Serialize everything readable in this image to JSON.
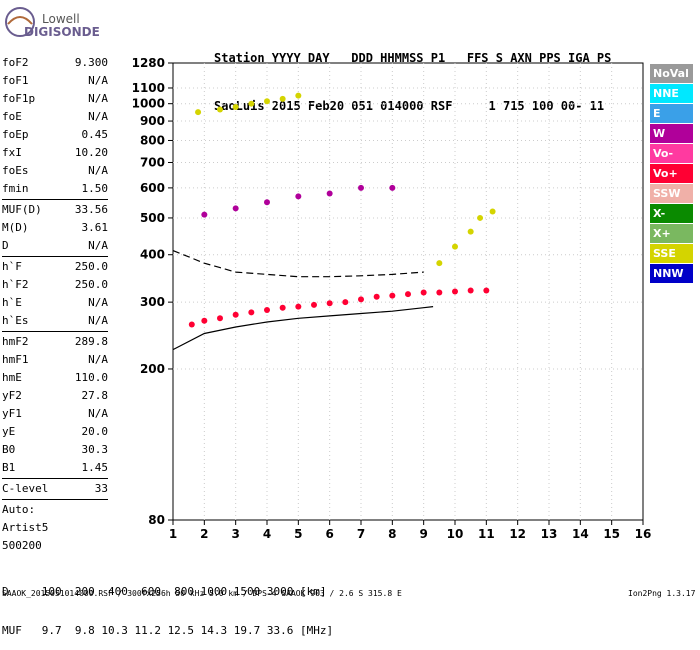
{
  "logo": {
    "line1": "Lowell",
    "line2": "DIGISONDE"
  },
  "header": {
    "labels": "Station YYYY DAY   DDD HHMMSS P1   FFS S AXN PPS IGA PS",
    "values": "SaoLuis 2015 Feb20 051 014000 RSF     1 715 100 00- 11"
  },
  "params": [
    {
      "name": "foF2",
      "value": "9.300"
    },
    {
      "name": "foF1",
      "value": "N/A"
    },
    {
      "name": "foF1p",
      "value": "N/A"
    },
    {
      "name": "foE",
      "value": "N/A"
    },
    {
      "name": "foEp",
      "value": "0.45"
    },
    {
      "name": "fxI",
      "value": "10.20"
    },
    {
      "name": "foEs",
      "value": "N/A"
    },
    {
      "name": "fmin",
      "value": "1.50",
      "sep_after": true
    },
    {
      "name": "MUF(D)",
      "value": "33.56"
    },
    {
      "name": "M(D)",
      "value": "3.61"
    },
    {
      "name": "D",
      "value": "N/A",
      "sep_after": true
    },
    {
      "name": "h`F",
      "value": "250.0"
    },
    {
      "name": "h`F2",
      "value": "250.0"
    },
    {
      "name": "h`E",
      "value": "N/A"
    },
    {
      "name": "h`Es",
      "value": "N/A",
      "sep_after": true
    },
    {
      "name": "hmF2",
      "value": "289.8"
    },
    {
      "name": "hmF1",
      "value": "N/A"
    },
    {
      "name": "hmE",
      "value": "110.0"
    },
    {
      "name": "yF2",
      "value": "27.8"
    },
    {
      "name": "yF1",
      "value": "N/A"
    },
    {
      "name": "yE",
      "value": "20.0"
    },
    {
      "name": "B0",
      "value": "30.3"
    },
    {
      "name": "B1",
      "value": "1.45",
      "sep_after": true
    },
    {
      "name": "C-level",
      "value": "33",
      "sep_after": true
    },
    {
      "name": "Auto:",
      "value": ""
    },
    {
      "name": "Artist5",
      "value": ""
    },
    {
      "name": "500200",
      "value": ""
    }
  ],
  "legend": [
    {
      "label": "NoVal",
      "color": "#9a9a9a"
    },
    {
      "label": "NNE",
      "color": "#00e8ff"
    },
    {
      "label": "E",
      "color": "#3aa0e8"
    },
    {
      "label": "W",
      "color": "#b0009a"
    },
    {
      "label": "Vo-",
      "color": "#ff3aa0"
    },
    {
      "label": "Vo+",
      "color": "#ff0033"
    },
    {
      "label": "SSW",
      "color": "#f0b0a8"
    },
    {
      "label": "X-",
      "color": "#0a8a00"
    },
    {
      "label": "X+",
      "color": "#7ab860"
    },
    {
      "label": "SSE",
      "color": "#d4d400"
    },
    {
      "label": "NNW",
      "color": "#0000c8"
    }
  ],
  "bottom": {
    "row_d": "D     100  200  400  600  800 1000 1500 3000 [km]",
    "row_muf": "MUF   9.7  9.8 10.3 11.2 12.5 14.3 19.7 33.6 [MHz]"
  },
  "footer": {
    "left": "SAAOK_2015051014000.RSF / 300fx256h 50 kHz 5.0 km / DPS-4 SAAOK 903 / 2.6 S 315.8 E",
    "right": "Ion2Png 1.3.17"
  },
  "chart_data": {
    "type": "scatter",
    "title": "",
    "xlabel": "",
    "ylabel": "",
    "xlim": [
      1,
      16
    ],
    "ylim": [
      80,
      1280
    ],
    "x_ticks": [
      1,
      2,
      3,
      4,
      5,
      6,
      7,
      8,
      9,
      10,
      11,
      12,
      13,
      14,
      15,
      16
    ],
    "y_ticks": [
      80,
      200,
      300,
      400,
      500,
      600,
      700,
      800,
      900,
      1000,
      1100,
      1280
    ],
    "y_scale": "log",
    "grid": true,
    "series": [
      {
        "name": "Vo+",
        "color": "#ff0033",
        "x": [
          1.6,
          2.0,
          2.5,
          3.0,
          3.5,
          4.0,
          4.5,
          5.0,
          5.5,
          6.0,
          6.5,
          7.0,
          7.5,
          8.0,
          8.5,
          9.0,
          9.5,
          10.0,
          10.5,
          11.0
        ],
        "y": [
          262,
          268,
          272,
          278,
          282,
          286,
          290,
          292,
          295,
          298,
          300,
          305,
          310,
          312,
          315,
          318,
          318,
          320,
          322,
          322
        ]
      },
      {
        "name": "SSE",
        "color": "#d4d400",
        "x": [
          1.8,
          2.5,
          3.0,
          3.5,
          4.0,
          4.5,
          5.0,
          9.5,
          10.0,
          10.5,
          10.8,
          11.2
        ],
        "y": [
          950,
          965,
          980,
          1000,
          1015,
          1030,
          1050,
          380,
          420,
          460,
          500,
          520
        ]
      },
      {
        "name": "W",
        "color": "#b0009a",
        "x": [
          2.0,
          3.0,
          4.0,
          5.0,
          6.0,
          7.0,
          8.0
        ],
        "y": [
          510,
          530,
          550,
          570,
          580,
          600,
          600
        ]
      }
    ],
    "traces": [
      {
        "name": "profile",
        "style": "solid",
        "x": [
          1,
          2,
          3,
          4,
          5,
          6,
          7,
          8,
          9,
          9.3
        ],
        "y": [
          225,
          248,
          258,
          266,
          272,
          276,
          280,
          284,
          290,
          292
        ]
      },
      {
        "name": "reflection",
        "style": "dashed",
        "x": [
          1,
          1.5,
          2,
          2.5,
          3,
          4,
          5,
          6,
          7,
          8,
          9
        ],
        "y": [
          410,
          395,
          380,
          370,
          360,
          355,
          350,
          350,
          352,
          355,
          360
        ]
      }
    ]
  }
}
